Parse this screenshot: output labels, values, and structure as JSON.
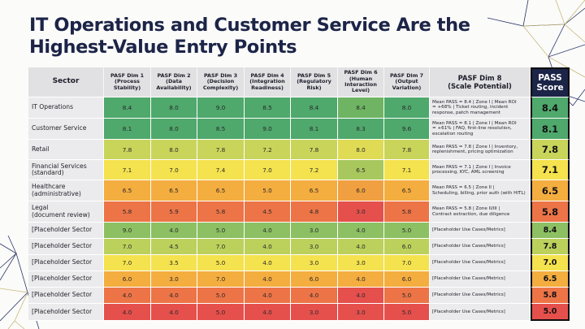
{
  "title_line1": "IT Operations and Customer Service Are the",
  "title_line2": "Highest-Value Entry Points",
  "colors": {
    "title": "#1c2447",
    "pass_header_bg": "#1c2447",
    "bg_line_navy": "#2c3566",
    "bg_line_gold": "#c7b97a"
  },
  "chart_data": {
    "type": "table",
    "title": "IT Operations and Customer Service Are the Highest-Value Entry Points",
    "columns": [
      "Sector",
      "PASF Dim 1 (Process Stability)",
      "PASF Dim 2 (Data Availability)",
      "PASF Dim 3 (Decision Complexity)",
      "PASF Dim 4 (Integration Readiness)",
      "PASF Dim 5 (Regulatory Risk)",
      "PASF Dim 6 (Human Interaction Level)",
      "PASF Dim 7 (Output Variation)",
      "PASF Dim 8 (Scale Potential)",
      "PASS Score"
    ],
    "header_lines": [
      [
        "Sector"
      ],
      [
        "PASF Dim 1",
        "(Process",
        "Stability)"
      ],
      [
        "PASF Dim 2",
        "(Data",
        "Availability)"
      ],
      [
        "PASF Dim 3",
        "(Decision",
        "Complexity)"
      ],
      [
        "PASF Dim 4",
        "(Integration",
        "Readiness)"
      ],
      [
        "PASF Dim 5",
        "(Regulatory",
        "Risk)"
      ],
      [
        "PASF Dim 6",
        "(Human",
        "Interaction",
        "Level)"
      ],
      [
        "PASF Dim 7",
        "(Output",
        "Variation)"
      ],
      [
        "PASF Dim 8",
        "(Scale Potential)"
      ],
      [
        "PASS",
        "Score"
      ]
    ],
    "color_scale": {
      "description": "cell background encodes value: green (high) to red (low)",
      "stops": [
        {
          "color": "#4fa86c"
        },
        {
          "color": "#8cc063"
        },
        {
          "color": "#c9d45a"
        },
        {
          "color": "#f4e24e"
        },
        {
          "color": "#f4ad3f"
        },
        {
          "color": "#ec7447"
        },
        {
          "color": "#e5504c"
        }
      ]
    },
    "rows": [
      {
        "sector": [
          "IT Operations"
        ],
        "dims": [
          8.4,
          8.0,
          9.0,
          8.5,
          8.4,
          8.4,
          8.0
        ],
        "dim_colors": [
          "#4fa86c",
          "#4fa86c",
          "#4fa86c",
          "#4fa86c",
          "#4fa86c",
          "#6eb463",
          "#4fa86c"
        ],
        "dim8": [
          "Mean PASS = 8.4 | Zone I | Mean ROI",
          "= +68% | Ticket routing, incident",
          "response, patch management"
        ],
        "pass": 8.4,
        "pass_color": "#4fa86c"
      },
      {
        "sector": [
          "Customer Service"
        ],
        "dims": [
          8.1,
          8.0,
          8.5,
          9.0,
          8.1,
          8.3,
          9.6
        ],
        "dim_colors": [
          "#4fa86c",
          "#4fa86c",
          "#4fa86c",
          "#4fa86c",
          "#4fa86c",
          "#4fa86c",
          "#4fa86c"
        ],
        "dim8": [
          "Mean PASS = 8.1 | Zone I | Mean ROI",
          "= +61% | FAQ, first-line resolution,",
          "escalation routing"
        ],
        "pass": 8.1,
        "pass_color": "#4fa86c"
      },
      {
        "sector": [
          "Retail"
        ],
        "dims": [
          7.8,
          8.0,
          7.8,
          7.2,
          7.8,
          8.0,
          7.8
        ],
        "dim_colors": [
          "#c9d45a",
          "#c9d45a",
          "#c9d45a",
          "#c9d45a",
          "#c9d45a",
          "#dfdb55",
          "#c9d45a"
        ],
        "dim8": [
          "Mean PASS = 7.8 | Zone I | Inventory,",
          "replenishment, pricing optimization"
        ],
        "pass": 7.8,
        "pass_color": "#c9d45a"
      },
      {
        "sector": [
          "Financial Services",
          "(standard)"
        ],
        "dims": [
          7.1,
          7.0,
          7.4,
          7.0,
          7.2,
          6.5,
          7.1
        ],
        "dim_colors": [
          "#f4e24e",
          "#f4e24e",
          "#f4e24e",
          "#f4e24e",
          "#f4e24e",
          "#a8c85e",
          "#f4e24e"
        ],
        "dim8": [
          "Mean PASS = 7.1 | Zone I | Invoice",
          "processing, KYC, AML screening"
        ],
        "pass": 7.1,
        "pass_color": "#f4e24e"
      },
      {
        "sector": [
          "Healthcare",
          "(administrative)"
        ],
        "dims": [
          6.5,
          6.5,
          6.5,
          5.0,
          6.5,
          6.0,
          6.5
        ],
        "dim_colors": [
          "#f4ad3f",
          "#f4ad3f",
          "#f4ad3f",
          "#f4ad3f",
          "#f4ad3f",
          "#f0a040",
          "#f4ad3f"
        ],
        "dim8": [
          "Mean PASS = 6.5 | Zone II |",
          "Scheduling, billing, prior auth (with HITL)"
        ],
        "pass": 6.5,
        "pass_color": "#f4ad3f"
      },
      {
        "sector": [
          "Legal",
          "(document review)"
        ],
        "dims": [
          5.8,
          5.9,
          5.8,
          4.5,
          4.8,
          3.0,
          5.8
        ],
        "dim_colors": [
          "#ec7447",
          "#ec7447",
          "#ec7447",
          "#ec7447",
          "#ec7447",
          "#e5504c",
          "#ec7447"
        ],
        "dim8": [
          "Mean PASS = 5.8 | Zone II/III |",
          "Contract extraction, due diligence"
        ],
        "pass": 5.8,
        "pass_color": "#ec7447"
      },
      {
        "sector": [
          "[Placeholder Sector"
        ],
        "dims": [
          9.0,
          4.0,
          5.0,
          4.0,
          3.0,
          4.0,
          5.0
        ],
        "dim_colors": [
          "#8cc063",
          "#8cc063",
          "#8cc063",
          "#8cc063",
          "#8cc063",
          "#8cc063",
          "#8cc063"
        ],
        "dim8": [
          "[Placeholder Use Cases/Metrics]"
        ],
        "pass": 8.4,
        "pass_color": "#8cc063"
      },
      {
        "sector": [
          "[Placeholder Sector"
        ],
        "dims": [
          7.0,
          4.5,
          7.0,
          4.0,
          3.0,
          4.0,
          6.0
        ],
        "dim_colors": [
          "#bcd05c",
          "#bcd05c",
          "#bcd05c",
          "#bcd05c",
          "#bcd05c",
          "#bcd05c",
          "#bcd05c"
        ],
        "dim8": [
          "[Placeholder Use Cases/Metrics]"
        ],
        "pass": 7.8,
        "pass_color": "#bcd05c"
      },
      {
        "sector": [
          "[Placeholder Sector"
        ],
        "dims": [
          7.0,
          3.5,
          5.0,
          4.0,
          3.0,
          3.0,
          7.0
        ],
        "dim_colors": [
          "#f4e24e",
          "#f4e24e",
          "#f4e24e",
          "#f4e24e",
          "#f4e24e",
          "#f4e24e",
          "#f4e24e"
        ],
        "dim8": [
          "[Placeholder Use Cases/Metrics]"
        ],
        "pass": 7.0,
        "pass_color": "#f4e24e"
      },
      {
        "sector": [
          "[Placeholder Sector"
        ],
        "dims": [
          6.0,
          3.0,
          7.0,
          4.0,
          6.0,
          4.0,
          6.0
        ],
        "dim_colors": [
          "#f4ad3f",
          "#f4ad3f",
          "#f4ad3f",
          "#f4ad3f",
          "#f4ad3f",
          "#f4ad3f",
          "#f4ad3f"
        ],
        "dim8": [
          "[Placeholder Use Cases/Metrics]"
        ],
        "pass": 6.5,
        "pass_color": "#f4ad3f"
      },
      {
        "sector": [
          "[Placeholder Sector"
        ],
        "dims": [
          4.0,
          4.0,
          5.0,
          4.0,
          4.0,
          4.0,
          5.0
        ],
        "dim_colors": [
          "#ec7447",
          "#ec7447",
          "#ec7447",
          "#ec7447",
          "#ec7447",
          "#e5504c",
          "#ec7447"
        ],
        "dim8": [
          "[Placeholder Use Cases/Metrics]"
        ],
        "pass": 5.8,
        "pass_color": "#ec7447"
      },
      {
        "sector": [
          "[Placeholder Sector"
        ],
        "dims": [
          4.0,
          4.0,
          5.0,
          4.0,
          3.0,
          3.0,
          5.0
        ],
        "dim_colors": [
          "#e5504c",
          "#e5504c",
          "#e5504c",
          "#e5504c",
          "#e5504c",
          "#e5504c",
          "#e5504c"
        ],
        "dim8": [
          "[Placeholder Use Cases/Metrics]"
        ],
        "pass": 5.0,
        "pass_color": "#e5504c"
      }
    ]
  }
}
